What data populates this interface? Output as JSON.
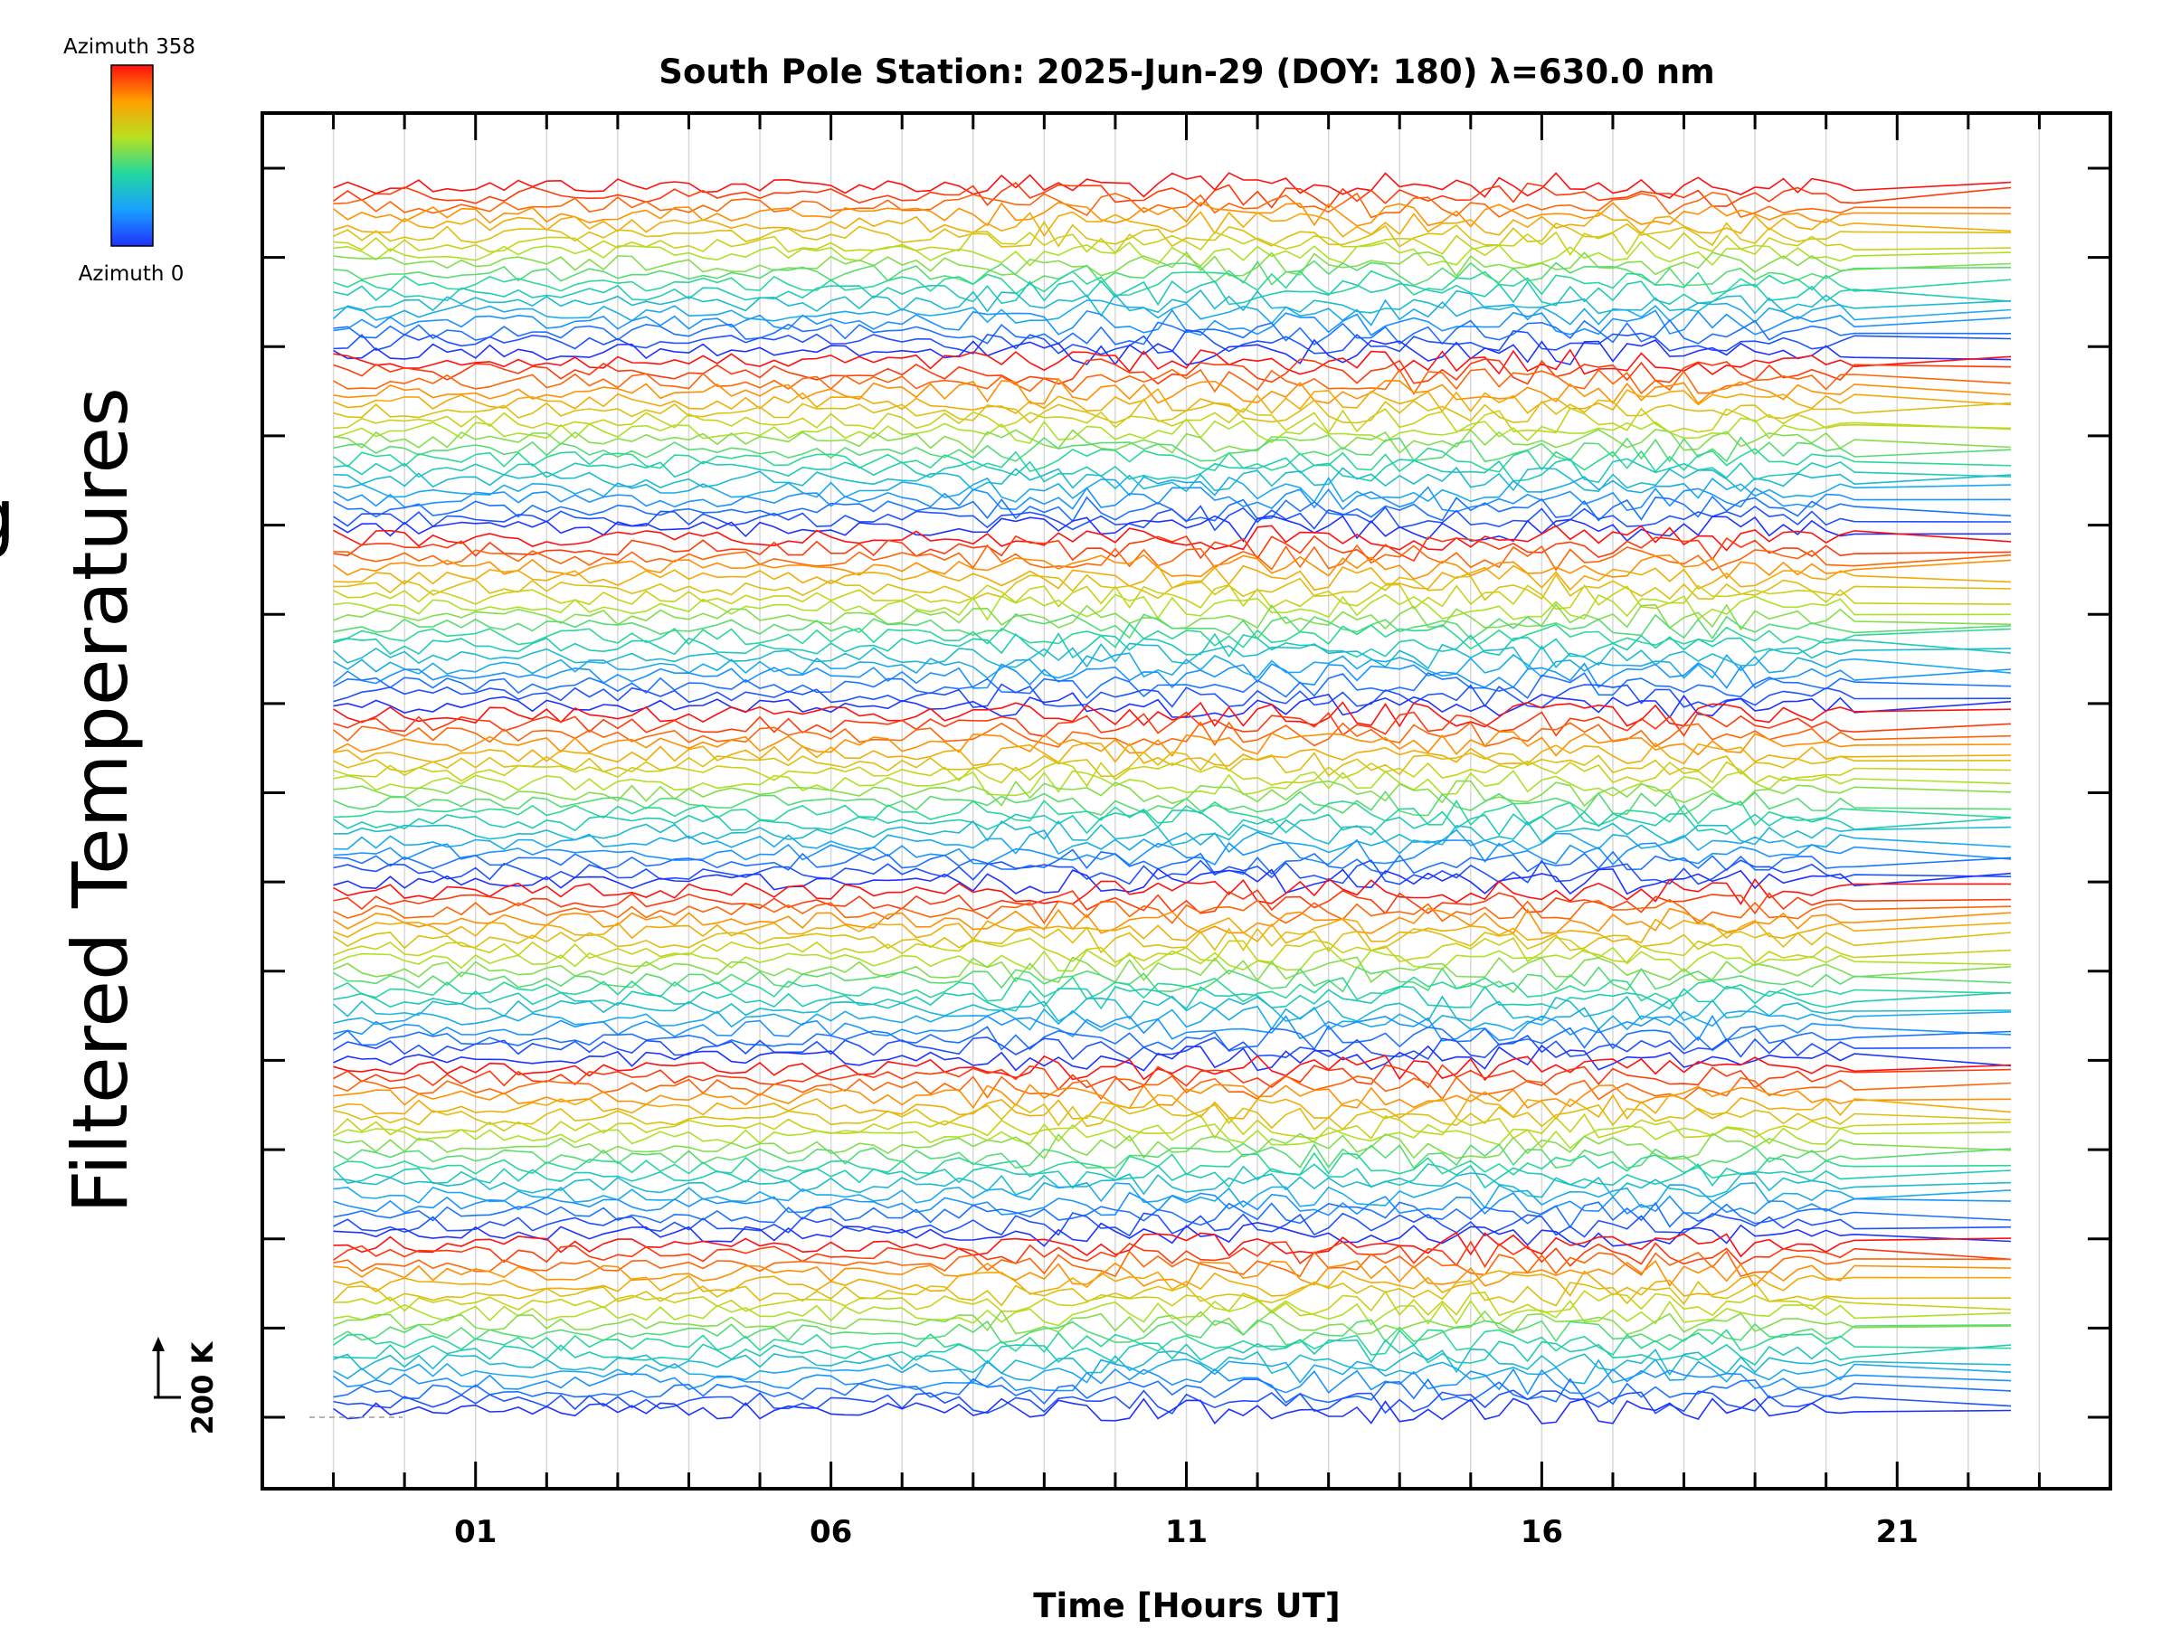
{
  "chart_data": {
    "type": "line",
    "title": "South Pole Station: 2025-Jun-29 (DOY: 180) λ=630.0 nm",
    "xlabel": "Time [Hours UT]",
    "ylabel": "Filtered Temperatures",
    "ylabel_cropped_glyph": "g",
    "xlim": [
      -2,
      24
    ],
    "x_tick_labels": [
      "01",
      "06",
      "11",
      "16",
      "21"
    ],
    "x_tick_values": [
      1,
      6,
      11,
      16,
      21
    ],
    "x_data_range": [
      -1,
      22.7
    ],
    "data_gap": [
      20.5,
      22.5
    ],
    "y_scale_bar_label": "200 K",
    "y_tick_count": 15,
    "colorbar": {
      "top_label": "Azimuth 358",
      "bottom_label": "Azimuth 0",
      "colormap": "rainbow"
    },
    "series_groups": 7,
    "series_per_group": 18,
    "series_description": "Stacked filtered temperature traces, one per azimuth (0–358°), offset vertically; each group cycles blue→cyan→green→yellow→orange→red"
  },
  "colors": {
    "axis": "#000000",
    "grid": "#d8d8d8",
    "background": "#ffffff"
  }
}
